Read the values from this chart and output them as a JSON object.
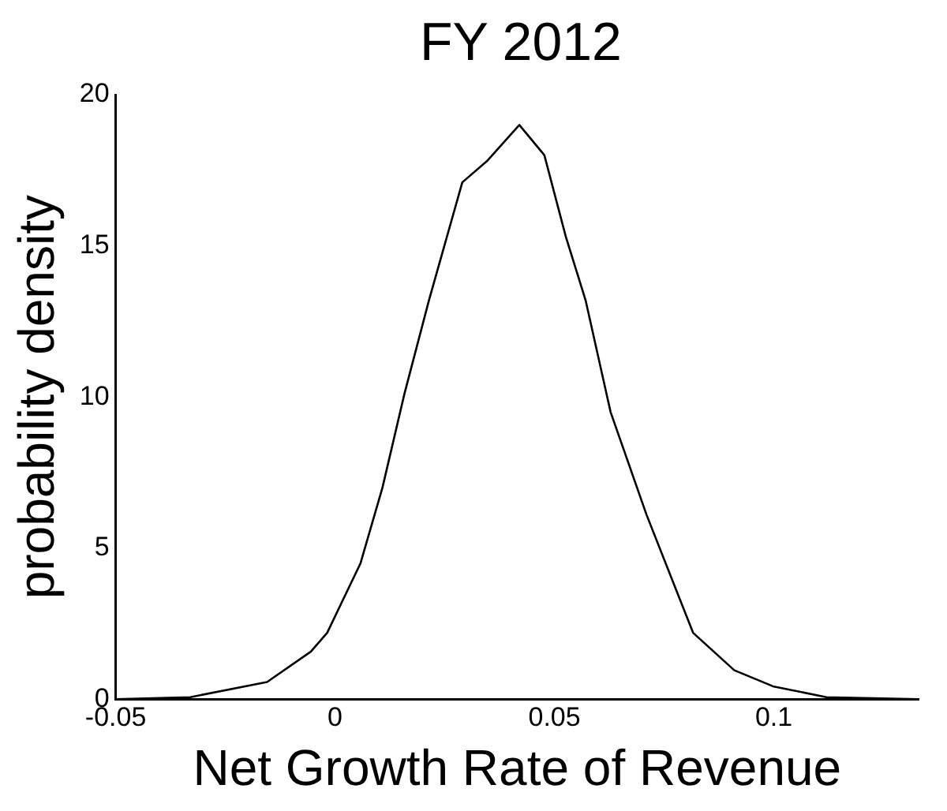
{
  "chart_data": {
    "type": "line",
    "title": "FY 2012",
    "xlabel": "Net Growth Rate of Revenue",
    "ylabel": "probability density",
    "x": [
      -0.05,
      -0.033,
      -0.0155,
      -0.0055,
      -0.0018,
      0.0058,
      0.0108,
      0.0158,
      0.0214,
      0.029,
      0.0346,
      0.042,
      0.0477,
      0.0526,
      0.0571,
      0.0628,
      0.071,
      0.0816,
      0.091,
      0.0998,
      0.112,
      0.133
    ],
    "values": [
      0,
      0.07,
      0.57,
      1.58,
      2.2,
      4.5,
      7.0,
      10.1,
      13.2,
      17.1,
      17.8,
      19.0,
      18.0,
      15.3,
      13.2,
      9.5,
      6.1,
      2.2,
      0.96,
      0.43,
      0.07,
      0
    ],
    "color": "#000000",
    "xlim": [
      -0.05,
      0.133
    ],
    "xticks": [
      -0.05,
      0,
      0.05,
      0.1
    ],
    "ylim": [
      0,
      20
    ],
    "yticks": [
      0,
      5,
      10,
      15,
      20
    ],
    "grid": false,
    "legend": false,
    "marker": "none",
    "line_style": "solid"
  }
}
